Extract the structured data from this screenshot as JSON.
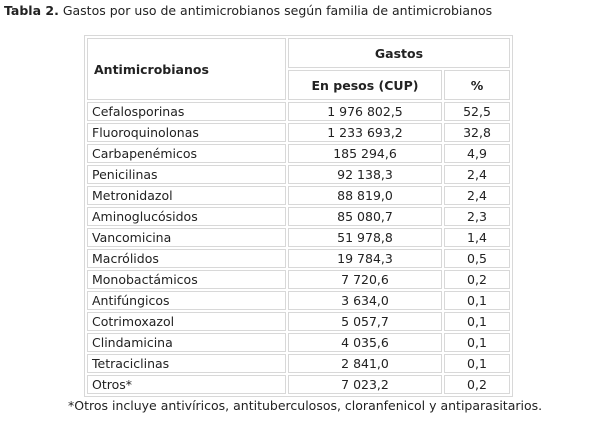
{
  "caption": {
    "label": "Tabla 2.",
    "text": "Gastos por uso de antimicrobianos según familia de antimicrobianos"
  },
  "table": {
    "header": {
      "col1": "Antimicrobianos",
      "group": "Gastos",
      "col2": "En pesos (CUP)",
      "col3": "%"
    },
    "rows": [
      {
        "name": "Cefalosporinas",
        "cost": "1 976 802,5",
        "pct": "52,5"
      },
      {
        "name": "Fluoroquinolonas",
        "cost": "1 233 693,2",
        "pct": "32,8"
      },
      {
        "name": "Carbapenémicos",
        "cost": "185 294,6",
        "pct": "4,9"
      },
      {
        "name": "Penicilinas",
        "cost": "92 138,3",
        "pct": "2,4"
      },
      {
        "name": "Metronidazol",
        "cost": "88 819,0",
        "pct": "2,4"
      },
      {
        "name": "Aminoglucósidos",
        "cost": "85 080,7",
        "pct": "2,3"
      },
      {
        "name": "Vancomicina",
        "cost": "51 978,8",
        "pct": "1,4"
      },
      {
        "name": "Macrólidos",
        "cost": "19 784,3",
        "pct": "0,5"
      },
      {
        "name": "Monobactámicos",
        "cost": "7 720,6",
        "pct": "0,2"
      },
      {
        "name": "Antifúngicos",
        "cost": "3 634,0",
        "pct": "0,1"
      },
      {
        "name": "Cotrimoxazol",
        "cost": "5 057,7",
        "pct": "0,1"
      },
      {
        "name": "Clindamicina",
        "cost": "4 035,6",
        "pct": "0,1"
      },
      {
        "name": "Tetraciclinas",
        "cost": "2 841,0",
        "pct": "0,1"
      },
      {
        "name": "Otros*",
        "cost": "7 023,2",
        "pct": "0,2"
      }
    ]
  },
  "footnote": "*Otros incluye antivíricos, antituberculosos, cloranfenicol y antiparasitarios."
}
